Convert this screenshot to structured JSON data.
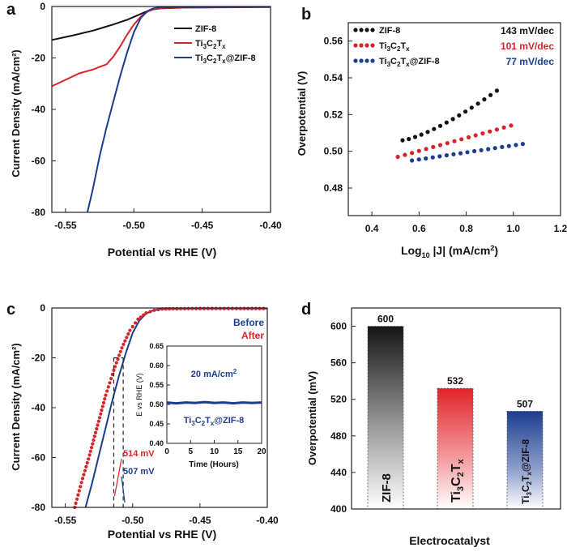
{
  "chart_data": [
    {
      "panel": "a",
      "type": "line",
      "xlabel": "Potential vs RHE (V)",
      "ylabel": "Current Density (mA/cm²)",
      "xlim": [
        -0.56,
        -0.4
      ],
      "ylim": [
        -80,
        0
      ],
      "xticks": [
        "-0.55",
        "-0.50",
        "-0.45",
        "-0.40"
      ],
      "yticks": [
        "0",
        "-20",
        "-40",
        "-60",
        "-80"
      ],
      "legend": [
        "ZIF-8",
        "Ti3C2Tx",
        "Ti3C2Tx@ZIF-8"
      ],
      "series": [
        {
          "name": "ZIF-8",
          "color": "#111111",
          "x": [
            -0.56,
            -0.545,
            -0.53,
            -0.515,
            -0.505,
            -0.498,
            -0.492,
            -0.487,
            -0.48,
            -0.46,
            -0.44,
            -0.42,
            -0.4
          ],
          "y": [
            -13,
            -11.3,
            -9.4,
            -7.0,
            -5.2,
            -3.6,
            -2.2,
            -1.2,
            -0.7,
            -0.4,
            -0.3,
            -0.25,
            -0.2
          ]
        },
        {
          "name": "Ti3C2Tx",
          "color": "#d8232a",
          "x": [
            -0.56,
            -0.55,
            -0.54,
            -0.53,
            -0.52,
            -0.515,
            -0.51,
            -0.505,
            -0.5,
            -0.495,
            -0.49,
            -0.485,
            -0.48,
            -0.46,
            -0.42,
            -0.4
          ],
          "y": [
            -31,
            -28.5,
            -26,
            -24.5,
            -22.5,
            -19.5,
            -15.5,
            -11,
            -7,
            -4,
            -2,
            -1,
            -0.6,
            -0.4,
            -0.3,
            -0.2
          ]
        },
        {
          "name": "Ti3C2Tx@ZIF-8",
          "color": "#1c3d8f",
          "x": [
            -0.534,
            -0.53,
            -0.525,
            -0.52,
            -0.515,
            -0.51,
            -0.505,
            -0.5,
            -0.495,
            -0.49,
            -0.486,
            -0.482,
            -0.47,
            -0.44,
            -0.4
          ],
          "y": [
            -80,
            -71,
            -58,
            -47,
            -37,
            -27,
            -18,
            -10,
            -4.5,
            -1.8,
            -0.8,
            -0.4,
            -0.3,
            -0.2,
            -0.2
          ]
        }
      ]
    },
    {
      "panel": "b",
      "type": "scatter",
      "xlabel": "Log10 |J| (mA/cm²)",
      "ylabel": "Overpotential (V)",
      "xlim": [
        0.3,
        1.2
      ],
      "ylim": [
        0.465,
        0.57
      ],
      "xticks": [
        "0.4",
        "0.6",
        "0.8",
        "1.0",
        "1.2"
      ],
      "yticks": [
        "0.48",
        "0.50",
        "0.52",
        "0.54",
        "0.56"
      ],
      "legend": [
        "ZIF-8",
        "Ti3C2Tx",
        "Ti3C2Tx@ZIF-8"
      ],
      "tafel_slopes": [
        "143 mV/dec",
        "101 mV/dec",
        "77 mV/dec"
      ],
      "series": [
        {
          "name": "ZIF-8",
          "color": "#111111",
          "x_start": 0.53,
          "x_end": 0.93,
          "y_start": 0.506,
          "y_end": 0.533,
          "points": 16
        },
        {
          "name": "Ti3C2Tx",
          "color": "#d8232a",
          "x_start": 0.51,
          "x_end": 0.99,
          "y_start": 0.497,
          "y_end": 0.514,
          "points": 17
        },
        {
          "name": "Ti3C2Tx@ZIF-8",
          "color": "#1c3d8f",
          "x_start": 0.57,
          "x_end": 1.04,
          "y_start": 0.495,
          "y_end": 0.504,
          "points": 17
        }
      ]
    },
    {
      "panel": "c",
      "type": "line",
      "xlabel": "Potential vs RHE (V)",
      "ylabel": "Current Density (mA/cm²)",
      "xlim": [
        -0.56,
        -0.4
      ],
      "ylim": [
        -80,
        0
      ],
      "xticks": [
        "-0.55",
        "-0.50",
        "-0.45",
        "-0.40"
      ],
      "yticks": [
        "0",
        "-20",
        "-40",
        "-60",
        "-80"
      ],
      "legend": [
        "Before",
        "After"
      ],
      "annotations": [
        "514 mV",
        "507 mV"
      ],
      "markers": [
        {
          "name": "After",
          "x": -0.514,
          "y": -20
        },
        {
          "name": "Before",
          "x": -0.507,
          "y": -20
        }
      ],
      "series": [
        {
          "name": "Before",
          "color": "#1c3d8f",
          "style": "line",
          "x": [
            -0.535,
            -0.53,
            -0.525,
            -0.52,
            -0.515,
            -0.51,
            -0.505,
            -0.5,
            -0.495,
            -0.49,
            -0.485,
            -0.48,
            -0.47,
            -0.45,
            -0.42,
            -0.4
          ],
          "y": [
            -80,
            -70,
            -59,
            -48,
            -37,
            -27,
            -18,
            -10,
            -5,
            -2.2,
            -1,
            -0.5,
            -0.3,
            -0.2,
            -0.2,
            -0.2
          ]
        },
        {
          "name": "After",
          "color": "#d8232a",
          "style": "dotted",
          "x": [
            -0.543,
            -0.538,
            -0.532,
            -0.526,
            -0.52,
            -0.514,
            -0.508,
            -0.502,
            -0.496,
            -0.49,
            -0.484,
            -0.478,
            -0.47,
            -0.45,
            -0.42,
            -0.4
          ],
          "y": [
            -80,
            -70,
            -59,
            -47,
            -35,
            -25,
            -16,
            -9,
            -4.5,
            -2,
            -0.9,
            -0.4,
            -0.3,
            -0.2,
            -0.2,
            -0.2
          ]
        }
      ],
      "inset": {
        "xlabel": "Time (Hours)",
        "ylabel": "E vs RHE (V)",
        "xlim": [
          0,
          20
        ],
        "ylim": [
          0.4,
          0.65
        ],
        "xticks": [
          "0",
          "5",
          "10",
          "15",
          "20"
        ],
        "yticks": [
          "0.65",
          "0.60",
          "0.55",
          "0.50",
          "0.45",
          "0.40"
        ],
        "label": "20 mA/cm²",
        "material": "Ti3C2Tx@ZIF-8",
        "series": {
          "color": "#1c3d8f",
          "x": [
            0,
            2,
            4,
            6,
            8,
            10,
            12,
            14,
            16,
            18,
            20
          ],
          "y": [
            0.505,
            0.503,
            0.505,
            0.504,
            0.506,
            0.504,
            0.505,
            0.503,
            0.505,
            0.504,
            0.505
          ]
        }
      }
    },
    {
      "panel": "d",
      "type": "bar",
      "xlabel": "Electrocatalyst",
      "ylabel": "Overpotential (mV)",
      "ylim": [
        400,
        620
      ],
      "yticks": [
        "400",
        "440",
        "480",
        "520",
        "560",
        "600"
      ],
      "categories": [
        "ZIF-8",
        "Ti3C2Tx",
        "Ti3C2Tx@ZIF-8"
      ],
      "values": [
        600,
        532,
        507
      ],
      "value_labels": [
        "600",
        "532",
        "507"
      ],
      "colors": [
        "#111111",
        "#e0232b",
        "#1c3d8f"
      ]
    }
  ],
  "panel_letters": [
    "a",
    "b",
    "c",
    "d"
  ]
}
